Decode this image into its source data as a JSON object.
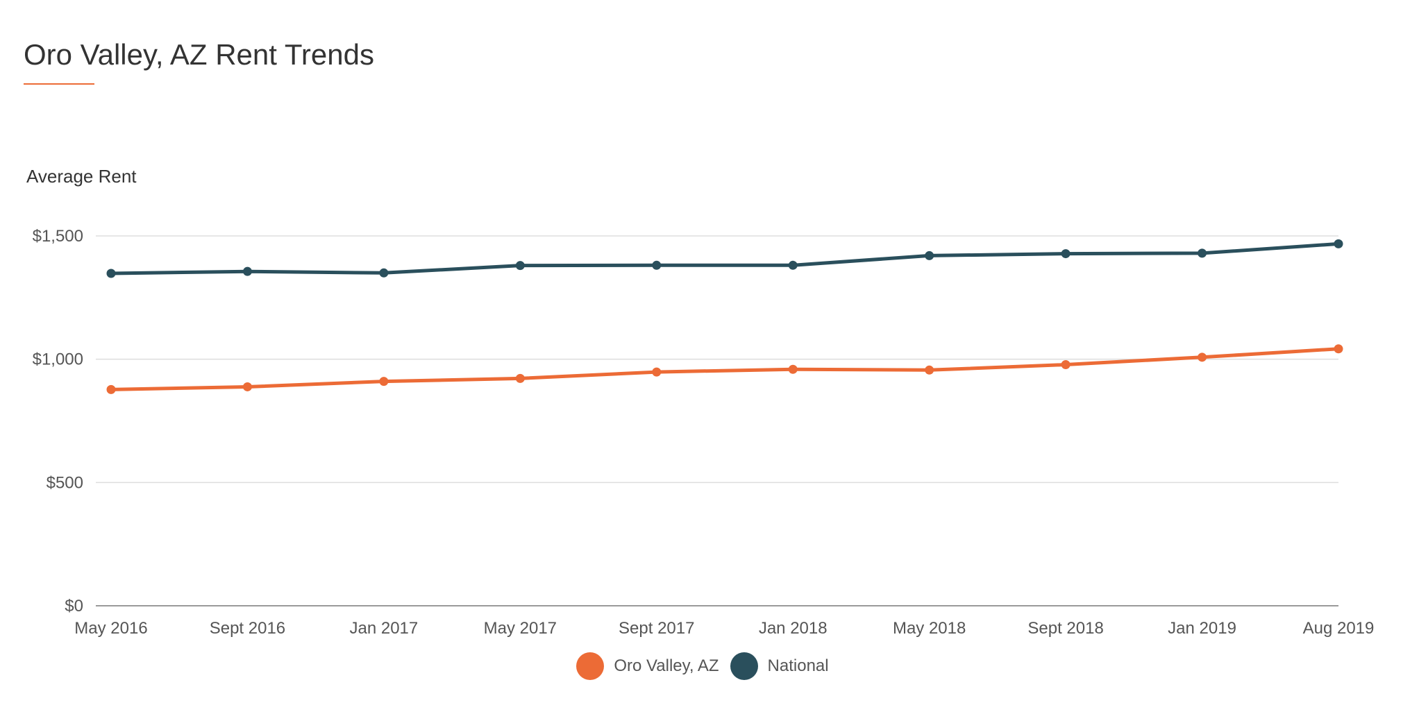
{
  "page": {
    "title": "Oro Valley, AZ Rent Trends"
  },
  "colors": {
    "accent": "#ec6b36",
    "oro_valley": "#ec6b36",
    "national": "#2a4f5c",
    "grid": "#dddddd",
    "axis": "#999999"
  },
  "chart_data": {
    "type": "line",
    "title": "",
    "xlabel": "",
    "ylabel": "Average Rent",
    "categories": [
      "May 2016",
      "Sept 2016",
      "Jan 2017",
      "May 2017",
      "Sept 2017",
      "Jan 2018",
      "May 2018",
      "Sept 2018",
      "Jan 2019",
      "Aug 2019"
    ],
    "series": [
      {
        "name": "Oro Valley, AZ",
        "color": "#ec6b36",
        "values": [
          877,
          888,
          910,
          922,
          948,
          959,
          956,
          978,
          1008,
          1042
        ]
      },
      {
        "name": "National",
        "color": "#2a4f5c",
        "values": [
          1348,
          1356,
          1350,
          1380,
          1381,
          1381,
          1420,
          1428,
          1430,
          1468
        ]
      }
    ],
    "ylim": [
      0,
      1500
    ],
    "yticks": [
      0,
      500,
      1000,
      1500
    ],
    "ytick_labels": [
      "$0",
      "$500",
      "$1,000",
      "$1,500"
    ],
    "grid": true,
    "legend_position": "bottom-center"
  }
}
